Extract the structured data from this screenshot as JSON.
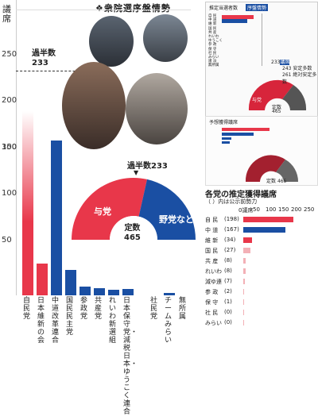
{
  "header": {
    "title": "衆院選序盤情勢",
    "y_unit": "議席",
    "y_ticks": [
      "300",
      "250",
      "200",
      "150",
      "100",
      "50"
    ]
  },
  "majority": {
    "label": "過半数",
    "value": "233",
    "gauge_label": "過半数233"
  },
  "gauge": {
    "ruling": "与党",
    "opposition": "野党など",
    "total_label": "定数",
    "total": "465",
    "ruling_share": 0.57
  },
  "parties": [
    {
      "name": "自民党",
      "seats": 198,
      "color": "#e8374a"
    },
    {
      "name": "日本維新の会",
      "seats": 34,
      "color": "#e8374a"
    },
    {
      "name": "中道改革連合",
      "seats": 167,
      "color": "#1a4fa3"
    },
    {
      "name": "国民民主党",
      "seats": 27,
      "color": "#1a4fa3"
    },
    {
      "name": "参政党",
      "seats": 9,
      "color": "#1a4fa3"
    },
    {
      "name": "共産党",
      "seats": 8,
      "color": "#1a4fa3"
    },
    {
      "name": "れいわ新選組",
      "seats": 6,
      "color": "#1a4fa3"
    },
    {
      "name": "日本保守党・減税日本・ゆうこく連合",
      "seats": 7,
      "color": "#1a4fa3"
    },
    {
      "name": "社民党",
      "seats": 0,
      "color": "#1a4fa3"
    },
    {
      "name": "チームみらい",
      "seats": 3,
      "color": "#1a4fa3"
    },
    {
      "name": "無所属",
      "seats": 0,
      "color": "#1a4fa3"
    }
  ],
  "right_panel": {
    "title": "各党の推定獲得議席",
    "note": "（ ）内は公示前勢力",
    "axis_unit": "0議席",
    "axis_ticks": [
      "50",
      "100",
      "150",
      "200",
      "250"
    ],
    "rows": [
      {
        "name": "自 民",
        "prev": "(198)",
        "value": 198
      },
      {
        "name": "中 道",
        "prev": "(167)",
        "value": 167
      },
      {
        "name": "維 新",
        "prev": "(34)",
        "value": 34
      },
      {
        "name": "国 民",
        "prev": "(27)",
        "value": 27
      },
      {
        "name": "共 産",
        "prev": "(8)",
        "value": 8
      },
      {
        "name": "れいわ",
        "prev": "(8)",
        "value": 8
      },
      {
        "name": "減ゆ連",
        "prev": "(7)",
        "value": 7
      },
      {
        "name": "参 政",
        "prev": "(2)",
        "value": 2
      },
      {
        "name": "保 守",
        "prev": "(1)",
        "value": 1
      },
      {
        "name": "社 民",
        "prev": "(0)",
        "value": 0
      },
      {
        "name": "みらい",
        "prev": "(0)",
        "value": 0
      }
    ]
  },
  "mini1": {
    "title": "推定当選者数",
    "tag": "序盤情勢",
    "rows": [
      "自 民",
      "中 道",
      "維 新",
      "国 民",
      "共 産",
      "れいわ",
      "ゆうこく",
      "参 政",
      "保 守",
      "社 民",
      "みらい",
      "諸 派",
      "無所属"
    ],
    "gauge_total_label": "定数",
    "gauge_total": "465",
    "ruling": "与党",
    "maj": "233",
    "maj_label": "議席",
    "a": "243 安定多数",
    "b": "261 絶対安定多数"
  },
  "mini2": {
    "title": "予想獲得議席",
    "total_label": "定数",
    "total": "465"
  }
}
